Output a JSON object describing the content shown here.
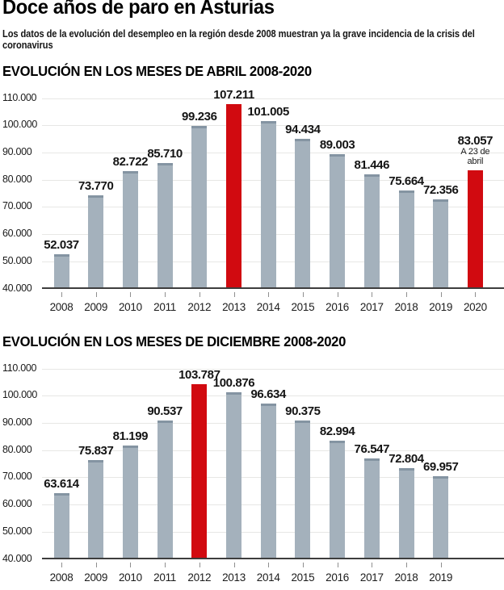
{
  "header": {
    "title": "Doce años de paro en Asturias",
    "subtitle": "Los datos de la evolución del desempleo en la región desde 2008 muestran ya la grave incidencia de la crisis del coronavirus"
  },
  "colors": {
    "bar": "#a4b1bc",
    "bar_cap": "#8494a2",
    "highlight": "#d10a10",
    "grid": "#e7e7e5",
    "axis": "#3d3d3d"
  },
  "chart_data": [
    {
      "type": "bar",
      "title": "EVOLUCIÓN EN LOS MESES DE ABRIL 2008-2020",
      "categories": [
        "2008",
        "2009",
        "2010",
        "2011",
        "2012",
        "2013",
        "2014",
        "2015",
        "2016",
        "2017",
        "2018",
        "2019",
        "2020"
      ],
      "values": [
        52037,
        73770,
        82722,
        85710,
        99236,
        107211,
        101005,
        94434,
        89003,
        81446,
        75664,
        72356,
        83057
      ],
      "value_labels": [
        "52.037",
        "73.770",
        "82.722",
        "85.710",
        "99.236",
        "107.211",
        "101.005",
        "94.434",
        "89.003",
        "81.446",
        "75.664",
        "72.356",
        "83.057"
      ],
      "highlight_indices": [
        5,
        12
      ],
      "annotations": [
        {
          "index": 12,
          "lines": [
            "A 23 de",
            "abril"
          ]
        }
      ],
      "ylim": [
        40000,
        110000
      ],
      "ytick_step": 10000,
      "ytick_labels": [
        "110.000",
        "100.000",
        "90.000",
        "80.000",
        "70.000",
        "60.000",
        "50.000",
        "40.000"
      ],
      "grid": true,
      "slots": 13
    },
    {
      "type": "bar",
      "title": "EVOLUCIÓN EN LOS MESES DE DICIEMBRE 2008-2020",
      "categories": [
        "2008",
        "2009",
        "2010",
        "2011",
        "2012",
        "2013",
        "2014",
        "2015",
        "2016",
        "2017",
        "2018",
        "2019"
      ],
      "values": [
        63614,
        75837,
        81199,
        90537,
        103787,
        100876,
        96634,
        90375,
        82994,
        76547,
        72804,
        69957
      ],
      "value_labels": [
        "63.614",
        "75.837",
        "81.199",
        "90.537",
        "103.787",
        "100.876",
        "96.634",
        "90.375",
        "82.994",
        "76.547",
        "72.804",
        "69.957"
      ],
      "highlight_indices": [
        4
      ],
      "annotations": [],
      "ylim": [
        40000,
        110000
      ],
      "ytick_step": 10000,
      "ytick_labels": [
        "110.000",
        "100.000",
        "90.000",
        "80.000",
        "70.000",
        "60.000",
        "50.000",
        "40.000"
      ],
      "grid": true,
      "slots": 13
    }
  ]
}
